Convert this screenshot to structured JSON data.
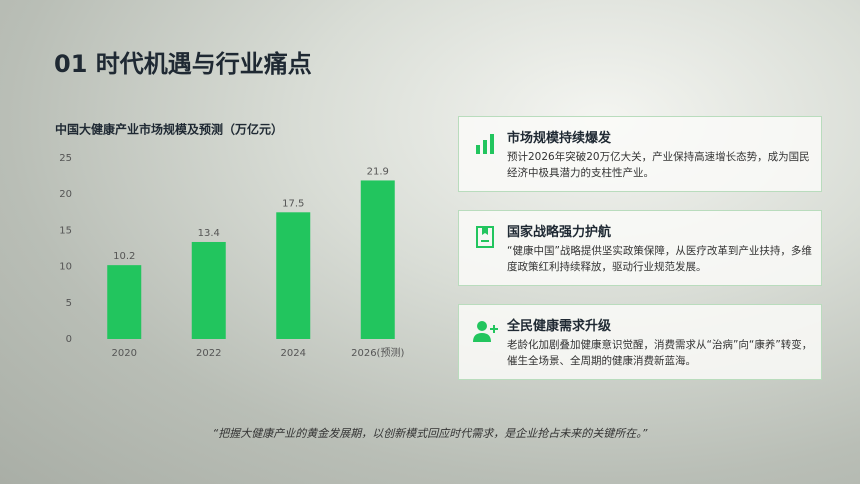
{
  "slide": {
    "title": "01 时代机遇与行业痛点",
    "quote": "“把握大健康产业的黄金发展期，以创新模式回应时代需求，是企业抢占未来的关键所在。”"
  },
  "cards": [
    {
      "title": "市场规模持续爆发",
      "text": "预计2026年突破20万亿大关，产业保持高速增长态势，成为国民经济中极具潜力的支柱性产业。"
    },
    {
      "title": "国家战略强力护航",
      "text": "“健康中国”战略提供坚实政策保障，从医疗改革到产业扶持，多维度政策红利持续释放，驱动行业规范发展。"
    },
    {
      "title": "全民健康需求升级",
      "text": "老龄化加剧叠加健康意识觉醒，消费需求从“治病”向“康养”转变，催生全场景、全周期的健康消费新蓝海。"
    }
  ],
  "chart_data": {
    "type": "bar",
    "title": "中国大健康产业市场规模及预测（万亿元）",
    "categories": [
      "2020",
      "2022",
      "2024",
      "2026(预测)"
    ],
    "values": [
      10.2,
      13.4,
      17.5,
      21.9
    ],
    "color": "#22c55e",
    "ylim": [
      0,
      25
    ],
    "yticks": [
      0,
      5,
      10,
      15,
      20,
      25
    ],
    "grid": false
  }
}
